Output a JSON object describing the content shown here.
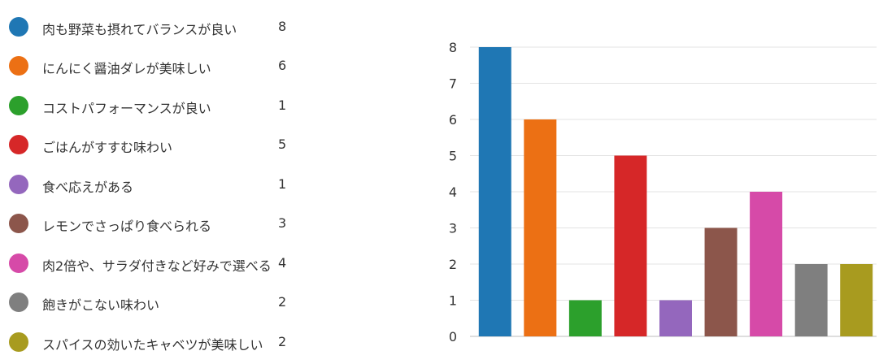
{
  "chart_data": {
    "type": "bar",
    "title": "",
    "xlabel": "",
    "ylabel": "",
    "ylim": [
      0,
      8
    ],
    "yticks": [
      0,
      1,
      2,
      3,
      4,
      5,
      6,
      7,
      8
    ],
    "grid": true,
    "legend_position": "left",
    "categories": [
      "肉も野菜も摂れてバランスが良い",
      "にんにく醤油ダレが美味しい",
      "コストパフォーマンスが良い",
      "ごはんがすすむ味わい",
      "食べ応えがある",
      "レモンでさっぱり食べられる",
      "肉2倍や、サラダ付きなど好みで選べる",
      "飽きがこない味わい",
      "スパイスの効いたキャベツが美味しい"
    ],
    "values": [
      8,
      6,
      1,
      5,
      1,
      3,
      4,
      2,
      2
    ],
    "counts": [
      "8",
      "6",
      "1",
      "5",
      "1",
      "3",
      "4",
      "2",
      "2"
    ],
    "colors": [
      "#1f77b4",
      "#ec7014",
      "#2ca02c",
      "#d62728",
      "#9467bd",
      "#8c564b",
      "#d64aa8",
      "#7f7f7f",
      "#a89b1f"
    ]
  }
}
